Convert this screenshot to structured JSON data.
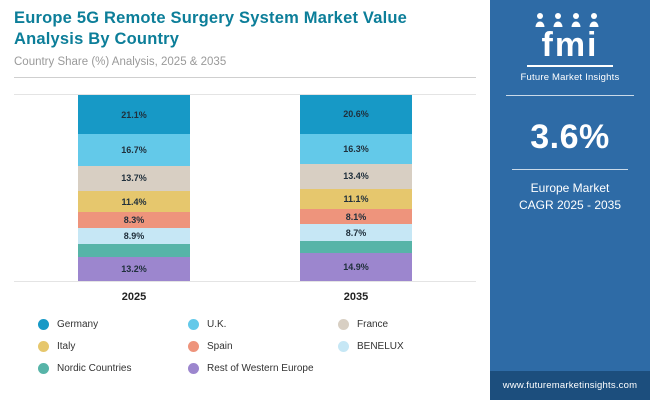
{
  "header": {
    "title": "Europe 5G Remote Surgery System Market Value Analysis By Country",
    "subtitle": "Country Share (%) Analysis, 2025 & 2035"
  },
  "sidebar": {
    "brand": "fmi",
    "brand_caption": "Future Market Insights",
    "cagr_value": "3.6%",
    "cagr_caption_line1": "Europe Market",
    "cagr_caption_line2": "CAGR 2025 - 2035",
    "website": "www.futuremarketinsights.com",
    "bg_color": "#2e6ba6",
    "footer_bg_color": "#1c4e7d"
  },
  "chart_data": {
    "type": "bar",
    "stacked": true,
    "unit": "%",
    "categories": [
      "2025",
      "2035"
    ],
    "series": [
      {
        "name": "Germany",
        "color": "#1799c6",
        "values": [
          21.1,
          20.6
        ],
        "labels": [
          "21.1%",
          "20.6%"
        ]
      },
      {
        "name": "U.K.",
        "color": "#63c9e9",
        "values": [
          16.7,
          16.3
        ],
        "labels": [
          "16.7%",
          "16.3%"
        ]
      },
      {
        "name": "France",
        "color": "#d8cfc3",
        "values": [
          13.7,
          13.4
        ],
        "labels": [
          "13.7%",
          "13.4%"
        ]
      },
      {
        "name": "Italy",
        "color": "#e6c76d",
        "values": [
          11.4,
          11.1
        ],
        "labels": [
          "11.4%",
          "11.1%"
        ]
      },
      {
        "name": "Spain",
        "color": "#ee947c",
        "values": [
          8.3,
          8.1
        ],
        "labels": [
          "8.3%",
          "8.1%"
        ]
      },
      {
        "name": "BENELUX",
        "color": "#c6e7f5",
        "values": [
          8.9,
          8.7
        ],
        "labels": [
          "8.9%",
          "8.7%"
        ]
      },
      {
        "name": "Nordic Countries",
        "color": "#57b4a8",
        "values": [
          6.7,
          6.9
        ],
        "labels": [
          "",
          ""
        ]
      },
      {
        "name": "Rest of Western Europe",
        "color": "#9c86ce",
        "values": [
          13.2,
          14.9
        ],
        "labels": [
          "13.2%",
          "14.9%"
        ]
      }
    ],
    "title": "Europe 5G Remote Surgery System Market Value Analysis By Country",
    "xlabel": "",
    "ylabel": "Country Share (%)",
    "ylim": [
      0,
      100
    ],
    "grid": "minimal",
    "legend_position": "bottom"
  }
}
